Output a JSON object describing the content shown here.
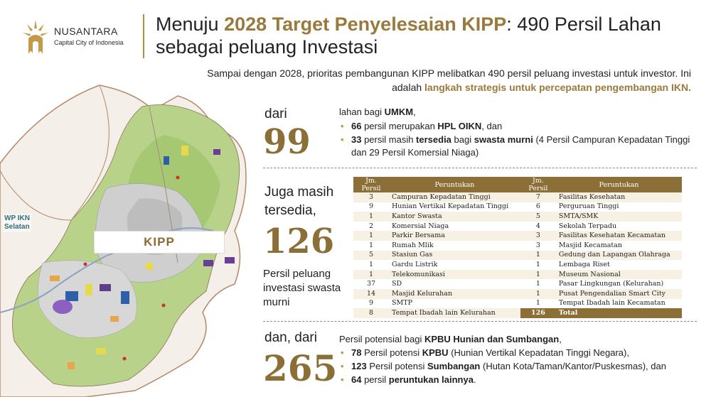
{
  "header": {
    "brand_name": "NUSANTARA",
    "brand_sub": "Capital City of Indonesia",
    "title_pre": "Menuju ",
    "title_hl": "2028 Target Penyelesaian KIPP",
    "title_post": ": 490 Persil Lahan sebagai peluang Investasi"
  },
  "intro": {
    "text": "Sampai dengan 2028, prioritas pembangunan KIPP melibatkan 490 persil peluang investasi untuk investor. Ini adalah ",
    "highlight": "langkah strategis untuk percepatan pengembangan IKN."
  },
  "map": {
    "wp_label_1": "WP IKN",
    "wp_label_2": "Selatan",
    "kipp_label": "KIPP"
  },
  "section1": {
    "label": "dari",
    "number": "99",
    "lead_pre": "lahan bagi ",
    "lead_bold": "UMKM",
    "lead_post": ",",
    "b1_num": "66",
    "b1_mid": " persil merupakan ",
    "b1_bold": "HPL OIKN",
    "b1_post": ", dan",
    "b2_num": "33",
    "b2_mid": " persil masih ",
    "b2_bold1": "tersedia",
    "b2_mid2": " bagi ",
    "b2_bold2": "swasta murni",
    "b2_post": " (4 Persil Campuran Kepadatan Tinggi dan 29 Persil Komersial Niaga)"
  },
  "section2": {
    "label_line1": "Juga masih",
    "label_line2": "tersedia,",
    "number": "126",
    "desc": "Persil peluang investasi swasta murni"
  },
  "table": {
    "col1": "Jm. Persil",
    "col2": "Peruntukan",
    "col3": "Jm. Persil",
    "col4": "Peruntukan",
    "rows": [
      {
        "n1": "3",
        "u1": "Campuran Kepadatan Tinggi",
        "n2": "7",
        "u2": "Fasilitas Kesehatan"
      },
      {
        "n1": "9",
        "u1": "Hunian Vertikal Kepadatan Tinggi",
        "n2": "6",
        "u2": "Perguruan Tinggi"
      },
      {
        "n1": "1",
        "u1": "Kantor Swasta",
        "n2": "5",
        "u2": "SMTA/SMK"
      },
      {
        "n1": "2",
        "u1": "Komersial Niaga",
        "n2": "4",
        "u2": "Sekolah Terpadu"
      },
      {
        "n1": "1",
        "u1": "Parkir Bersama",
        "n2": "3",
        "u2": "Fasilitas Kesehatan Kecamatan"
      },
      {
        "n1": "1",
        "u1": "Rumah Mlik",
        "n2": "3",
        "u2": "Masjid Kecamatan"
      },
      {
        "n1": "5",
        "u1": "Stasiun Gas",
        "n2": "1",
        "u2": "Gedung dan Lapangan Olahraga"
      },
      {
        "n1": "1",
        "u1": "Gardu Listrik",
        "n2": "1",
        "u2": "Lembaga Riset"
      },
      {
        "n1": "1",
        "u1": "Telekomunikasi",
        "n2": "1",
        "u2": "Museum Nasional"
      },
      {
        "n1": "37",
        "u1": "SD",
        "n2": "1",
        "u2": "Pasar Lingkungan (Kelurahan)"
      },
      {
        "n1": "14",
        "u1": "Masjid Kelurahan",
        "n2": "1",
        "u2": "Pusat Pengendalian Smart City"
      },
      {
        "n1": "9",
        "u1": "SMTP",
        "n2": "1",
        "u2": "Tempat Ibadah lain Kecamatan"
      },
      {
        "n1": "8",
        "u1": "Tempat Ibadah lain Kelurahan",
        "n2": "126",
        "u2": "Total"
      }
    ]
  },
  "section3": {
    "label": "dan, dari",
    "number": "265",
    "lead_pre": "Persil potensial bagi ",
    "lead_bold": "KPBU Hunian dan Sumbangan",
    "lead_post": ",",
    "b1_num": "78",
    "b1_mid": " Persil potensi ",
    "b1_bold": "KPBU",
    "b1_post": " (Hunian Vertikal Kepadatan Tinggi Negara),",
    "b2_num": "123",
    "b2_mid": " Persil potensi ",
    "b2_bold": "Sumbangan",
    "b2_post": " (Hutan Kota/Taman/Kantor/Puskesmas), dan",
    "b3_num": "64",
    "b3_mid": " persil ",
    "b3_bold": "peruntukan lainnya",
    "b3_post": "."
  }
}
